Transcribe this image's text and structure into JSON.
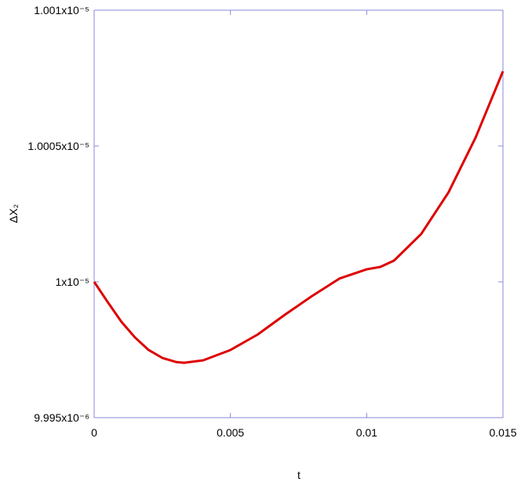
{
  "chart_data": {
    "type": "line",
    "x_label": "t",
    "y_label": "ΔX₂",
    "x": [
      0,
      0.0005,
      0.001,
      0.0015,
      0.002,
      0.0025,
      0.003,
      0.0033,
      0.004,
      0.005,
      0.006,
      0.007,
      0.008,
      0.009,
      0.01,
      0.0105,
      0.011,
      0.012,
      0.013,
      0.014,
      0.015
    ],
    "series": [
      {
        "color": "#dd0000",
        "values": [
          1e-05,
          9.99925e-06,
          9.99853e-06,
          9.99795e-06,
          9.99749e-06,
          9.9972e-06,
          9.99705e-06,
          9.99702e-06,
          9.99711e-06,
          9.99749e-06,
          9.99806e-06,
          9.99879e-06,
          9.99948e-06,
          1.000012e-05,
          1.000046e-05,
          1.000055e-05,
          1.000078e-05,
          1.000176e-05,
          1.000329e-05,
          1.000532e-05,
          1.000775e-05
        ]
      }
    ],
    "xlim": [
      0,
      0.015
    ],
    "xticks": [
      0,
      0.005,
      0.01,
      0.015
    ],
    "ylim": [
      9.995e-06,
      1.001e-05
    ],
    "yticks": [
      {
        "value": 9.995e-06,
        "label": "9.995x10⁻⁶"
      },
      {
        "value": 1e-05,
        "label": "1x10⁻⁵"
      },
      {
        "value": 1.0005e-05,
        "label": "1.0005x10⁻⁵"
      },
      {
        "value": 1.001e-05,
        "label": "1.001x10⁻⁵"
      }
    ],
    "axis_color": "#8888dd"
  }
}
